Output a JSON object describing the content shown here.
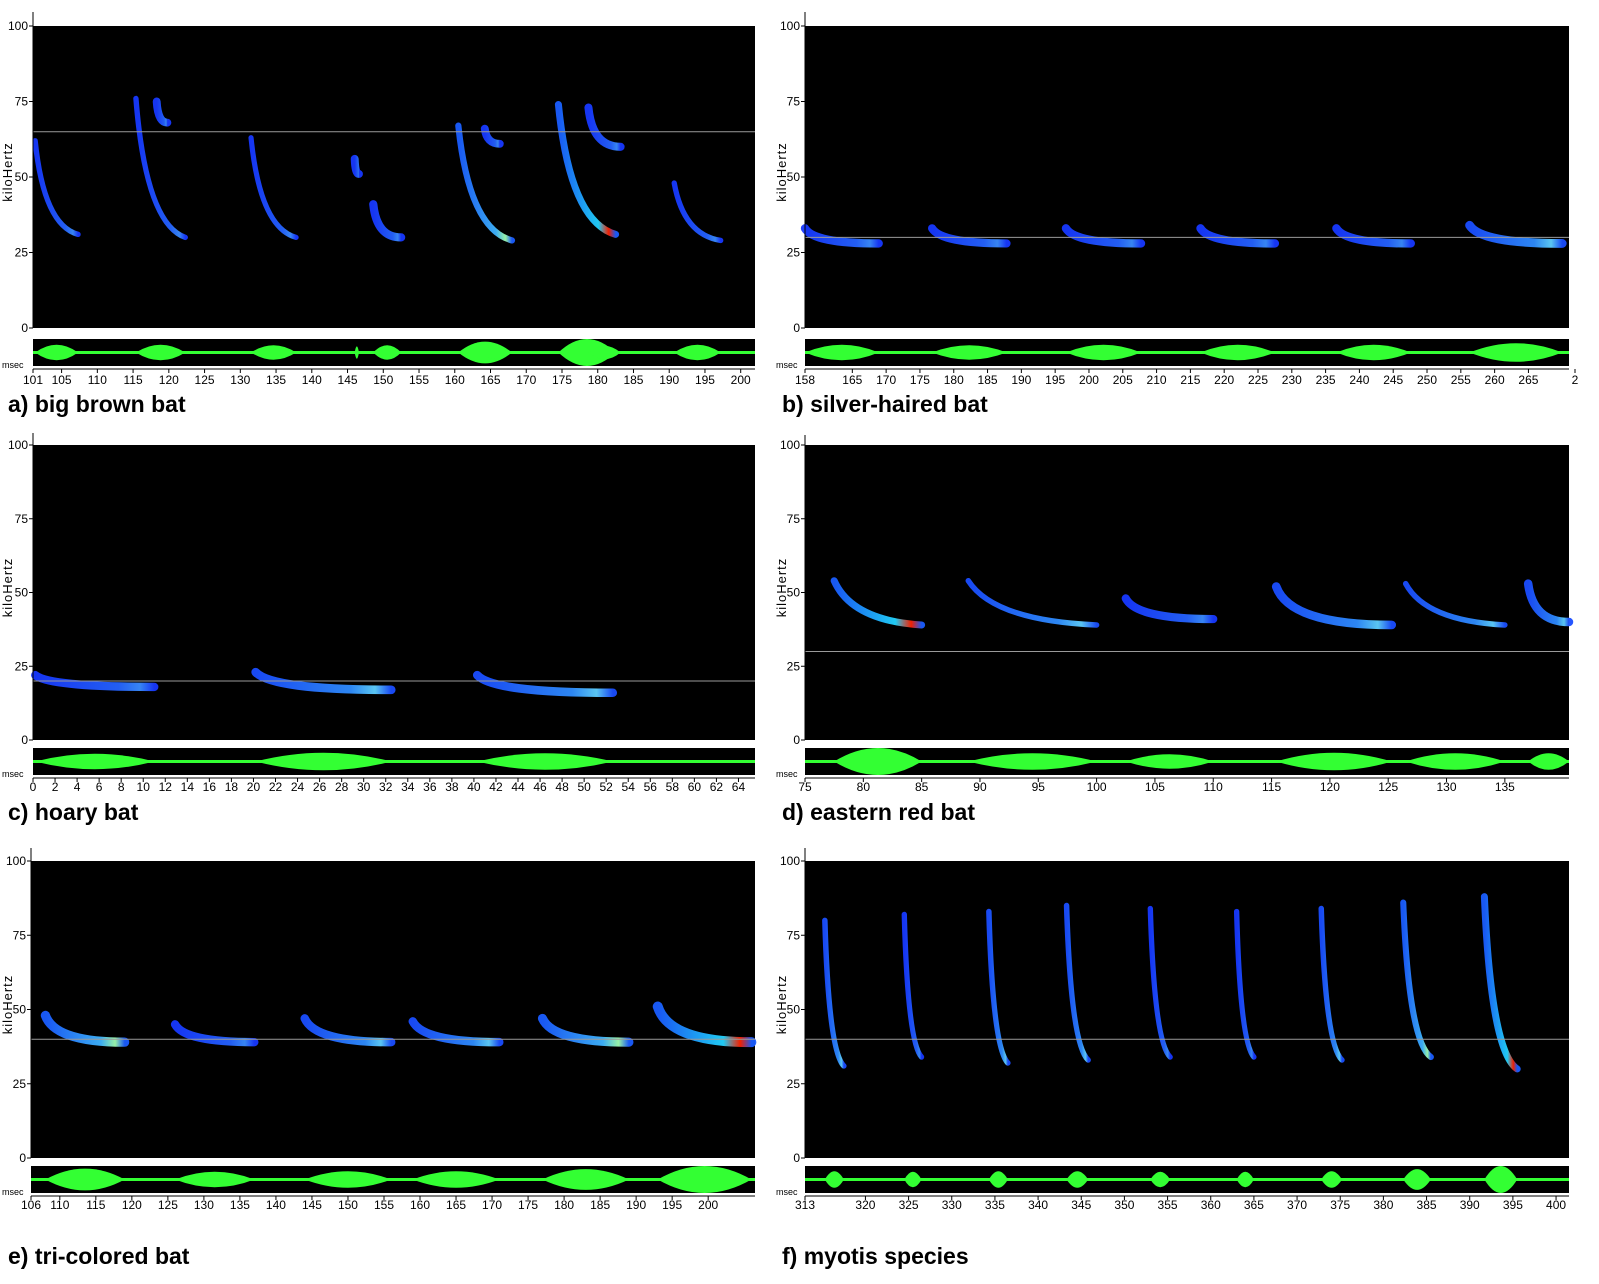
{
  "chart_data": [
    {
      "type": "spectrogram",
      "caption": "a) big brown bat",
      "ylabel": "kiloHertz",
      "yticks": [
        "0",
        "25",
        "50",
        "75",
        "100"
      ],
      "ylim": [
        0,
        100
      ],
      "x_unit_label": "msec",
      "xlim": [
        101,
        202
      ],
      "xticks": [
        "101",
        "105",
        "110",
        "115",
        "120",
        "125",
        "130",
        "135",
        "140",
        "145",
        "150",
        "155",
        "160",
        "165",
        "170",
        "175",
        "180",
        "185",
        "190",
        "195",
        "200"
      ],
      "reference_line_khz": 65,
      "calls": [
        {
          "t_start": 101.3,
          "t_end": 107.3,
          "f_start": 62,
          "f_end": 31,
          "intensity": 0.45
        },
        {
          "t_start": 115.4,
          "t_end": 122.3,
          "f_start": 76,
          "f_end": 30,
          "intensity": 0.45
        },
        {
          "t_start": 131.5,
          "t_end": 137.8,
          "f_start": 63,
          "f_end": 30,
          "intensity": 0.4
        },
        {
          "t_start": 146.0,
          "t_end": 146.6,
          "f_start": 56,
          "f_end": 51,
          "intensity": 0.3
        },
        {
          "t_start": 148.6,
          "t_end": 152.5,
          "f_start": 41,
          "f_end": 30,
          "intensity": 0.4
        },
        {
          "t_start": 160.5,
          "t_end": 168.0,
          "f_start": 67,
          "f_end": 29,
          "intensity": 0.75
        },
        {
          "t_start": 164.2,
          "t_end": 166.3,
          "f_start": 66,
          "f_end": 61,
          "intensity": 0.3
        },
        {
          "t_start": 174.5,
          "t_end": 182.5,
          "f_start": 74,
          "f_end": 31,
          "intensity": 1.0
        },
        {
          "t_start": 178.7,
          "t_end": 183.2,
          "f_start": 73,
          "f_end": 60,
          "intensity": 0.35
        },
        {
          "t_start": 118.3,
          "t_end": 119.8,
          "f_start": 75,
          "f_end": 68,
          "intensity": 0.3
        },
        {
          "t_start": 190.7,
          "t_end": 197.2,
          "f_start": 48,
          "f_end": 29,
          "intensity": 0.45
        }
      ]
    },
    {
      "type": "spectrogram",
      "caption": "b) silver-haired bat",
      "ylabel": "kiloHertz",
      "yticks": [
        "0",
        "25",
        "50",
        "75",
        "100"
      ],
      "ylim": [
        0,
        100
      ],
      "x_unit_label": "msec",
      "xlim": [
        158,
        271
      ],
      "xticks": [
        "158",
        "165",
        "170",
        "175",
        "180",
        "185",
        "190",
        "195",
        "200",
        "205",
        "210",
        "215",
        "220",
        "225",
        "230",
        "235",
        "240",
        "245",
        "250",
        "255",
        "260",
        "265",
        "2"
      ],
      "reference_line_khz": 30,
      "calls": [
        {
          "t_start": 158.0,
          "t_end": 168.9,
          "f_start": 33,
          "f_end": 28,
          "intensity": 0.45
        },
        {
          "t_start": 176.8,
          "t_end": 187.8,
          "f_start": 33,
          "f_end": 28,
          "intensity": 0.4
        },
        {
          "t_start": 196.6,
          "t_end": 207.7,
          "f_start": 33,
          "f_end": 28,
          "intensity": 0.45
        },
        {
          "t_start": 216.5,
          "t_end": 227.5,
          "f_start": 33,
          "f_end": 28,
          "intensity": 0.45
        },
        {
          "t_start": 236.6,
          "t_end": 247.6,
          "f_start": 33,
          "f_end": 28,
          "intensity": 0.45
        },
        {
          "t_start": 256.3,
          "t_end": 270.0,
          "f_start": 34,
          "f_end": 28,
          "intensity": 0.6
        }
      ]
    },
    {
      "type": "spectrogram",
      "caption": "c) hoary bat",
      "ylabel": "kiloHertz",
      "yticks": [
        "0",
        "25",
        "50",
        "75",
        "100"
      ],
      "ylim": [
        0,
        100
      ],
      "x_unit_label": "msec",
      "xlim": [
        0,
        65.5
      ],
      "xticks": [
        "0",
        "2",
        "4",
        "6",
        "8",
        "10",
        "12",
        "14",
        "16",
        "18",
        "20",
        "22",
        "24",
        "26",
        "28",
        "30",
        "32",
        "34",
        "36",
        "38",
        "40",
        "42",
        "44",
        "46",
        "48",
        "50",
        "52",
        "54",
        "56",
        "58",
        "60",
        "62",
        "64"
      ],
      "reference_line_khz": 20,
      "calls": [
        {
          "t_start": 0.2,
          "t_end": 11.0,
          "f_start": 22,
          "f_end": 18,
          "intensity": 0.45
        },
        {
          "t_start": 20.2,
          "t_end": 32.5,
          "f_start": 23,
          "f_end": 17,
          "intensity": 0.55
        },
        {
          "t_start": 40.3,
          "t_end": 52.6,
          "f_start": 22,
          "f_end": 16,
          "intensity": 0.5
        }
      ]
    },
    {
      "type": "spectrogram",
      "caption": "d) eastern red bat",
      "ylabel": "kiloHertz",
      "yticks": [
        "0",
        "25",
        "50",
        "75",
        "100"
      ],
      "ylim": [
        0,
        100
      ],
      "x_unit_label": "msec",
      "xlim": [
        75,
        140.5
      ],
      "xticks": [
        "75",
        "80",
        "85",
        "90",
        "95",
        "100",
        "105",
        "110",
        "115",
        "120",
        "125",
        "130",
        "135"
      ],
      "reference_line_khz": 30,
      "calls": [
        {
          "t_start": 77.5,
          "t_end": 85.0,
          "f_start": 54,
          "f_end": 39,
          "intensity": 1.0
        },
        {
          "t_start": 89.0,
          "t_end": 100.0,
          "f_start": 54,
          "f_end": 39,
          "intensity": 0.5
        },
        {
          "t_start": 102.5,
          "t_end": 110.0,
          "f_start": 48,
          "f_end": 41,
          "intensity": 0.4
        },
        {
          "t_start": 115.4,
          "t_end": 125.3,
          "f_start": 52,
          "f_end": 39,
          "intensity": 0.55
        },
        {
          "t_start": 126.5,
          "t_end": 135.0,
          "f_start": 53,
          "f_end": 39,
          "intensity": 0.5
        },
        {
          "t_start": 137.0,
          "t_end": 140.5,
          "f_start": 53,
          "f_end": 40,
          "intensity": 0.5
        }
      ]
    },
    {
      "type": "spectrogram",
      "caption": "e) tri-colored bat",
      "ylabel": "kiloHertz",
      "yticks": [
        "0",
        "25",
        "50",
        "75",
        "100"
      ],
      "ylim": [
        0,
        100
      ],
      "x_unit_label": "msec",
      "xlim": [
        106,
        206.5
      ],
      "xticks": [
        "106",
        "110",
        "115",
        "120",
        "125",
        "130",
        "135",
        "140",
        "145",
        "150",
        "155",
        "160",
        "165",
        "170",
        "175",
        "180",
        "185",
        "190",
        "195",
        "200"
      ],
      "reference_line_khz": 40,
      "calls": [
        {
          "t_start": 108.0,
          "t_end": 119.0,
          "f_start": 48,
          "f_end": 39,
          "intensity": 0.75
        },
        {
          "t_start": 126.0,
          "t_end": 137.0,
          "f_start": 45,
          "f_end": 39,
          "intensity": 0.45
        },
        {
          "t_start": 144.0,
          "t_end": 156.0,
          "f_start": 47,
          "f_end": 39,
          "intensity": 0.5
        },
        {
          "t_start": 159.0,
          "t_end": 171.0,
          "f_start": 46,
          "f_end": 39,
          "intensity": 0.5
        },
        {
          "t_start": 177.0,
          "t_end": 189.0,
          "f_start": 47,
          "f_end": 39,
          "intensity": 0.7
        },
        {
          "t_start": 193.0,
          "t_end": 206.0,
          "f_start": 51,
          "f_end": 39,
          "intensity": 1.0
        }
      ]
    },
    {
      "type": "spectrogram",
      "caption": "f) myotis species",
      "ylabel": "kiloHertz",
      "yticks": [
        "0",
        "25",
        "50",
        "75",
        "100"
      ],
      "ylim": [
        0,
        100
      ],
      "x_unit_label": "msec",
      "xlim": [
        313,
        401.5
      ],
      "xticks": [
        "313",
        "320",
        "325",
        "330",
        "335",
        "340",
        "345",
        "350",
        "355",
        "360",
        "365",
        "370",
        "375",
        "380",
        "385",
        "390",
        "395",
        "400"
      ],
      "reference_line_khz": 40,
      "calls": [
        {
          "t_start": 315.3,
          "t_end": 317.5,
          "f_start": 80,
          "f_end": 31,
          "intensity": 0.5
        },
        {
          "t_start": 324.5,
          "t_end": 326.5,
          "f_start": 82,
          "f_end": 34,
          "intensity": 0.45
        },
        {
          "t_start": 334.3,
          "t_end": 336.5,
          "f_start": 83,
          "f_end": 32,
          "intensity": 0.5
        },
        {
          "t_start": 343.3,
          "t_end": 345.8,
          "f_start": 85,
          "f_end": 33,
          "intensity": 0.5
        },
        {
          "t_start": 353.0,
          "t_end": 355.3,
          "f_start": 84,
          "f_end": 34,
          "intensity": 0.45
        },
        {
          "t_start": 363.0,
          "t_end": 365.0,
          "f_start": 83,
          "f_end": 34,
          "intensity": 0.45
        },
        {
          "t_start": 372.8,
          "t_end": 375.2,
          "f_start": 84,
          "f_end": 33,
          "intensity": 0.5
        },
        {
          "t_start": 382.3,
          "t_end": 385.5,
          "f_start": 86,
          "f_end": 34,
          "intensity": 0.7
        },
        {
          "t_start": 391.7,
          "t_end": 395.5,
          "f_start": 88,
          "f_end": 30,
          "intensity": 1.0
        }
      ]
    }
  ]
}
